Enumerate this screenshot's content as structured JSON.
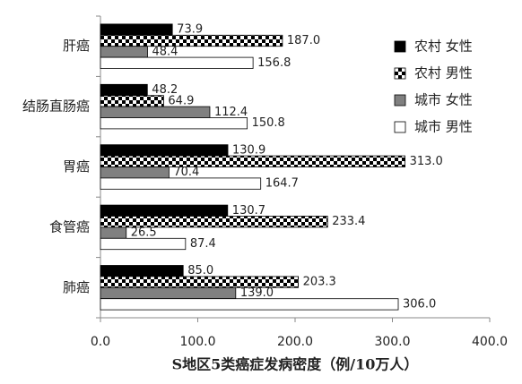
{
  "chart_data": {
    "type": "hbar",
    "x_label": "S地区5类癌症发病密度（例/10万人）",
    "categories": [
      "肝癌",
      "结肠直肠癌",
      "胃癌",
      "食管癌",
      "肺癌"
    ],
    "series": [
      {
        "name": "农村 女性",
        "color": "#000000",
        "values": [
          73.9,
          48.2,
          130.9,
          130.7,
          85.0
        ],
        "value_labels": [
          "73.9",
          "48.2",
          "130.9",
          "130.7",
          "85.0"
        ]
      },
      {
        "name": "农村 男性",
        "color": "#000000",
        "pattern": "checkerboard",
        "values": [
          187.0,
          64.9,
          313.0,
          233.4,
          203.3
        ],
        "value_labels": [
          "187.0",
          "64.9",
          "313.0",
          "233.4",
          "203.3"
        ]
      },
      {
        "name": "城市 女性",
        "color": "#808080",
        "values": [
          48.4,
          112.4,
          70.4,
          26.5,
          139.0
        ],
        "value_labels": [
          "48.4",
          "112.4",
          "70.4",
          "26.5",
          "139.0"
        ]
      },
      {
        "name": "城市 男性",
        "color": "#ffffff",
        "values": [
          156.8,
          150.8,
          164.7,
          87.4,
          306.0
        ],
        "value_labels": [
          "156.8",
          "150.8",
          "164.7",
          "87.4",
          "306.0"
        ]
      }
    ],
    "xlim": [
      0,
      400
    ],
    "xticks": [
      {
        "value": 0,
        "label": "0.0"
      },
      {
        "value": 100,
        "label": "100.0"
      },
      {
        "value": 200,
        "label": "200.0"
      },
      {
        "value": 300,
        "label": "300.0"
      },
      {
        "value": 400,
        "label": "400.0"
      }
    ],
    "legend": "right"
  }
}
